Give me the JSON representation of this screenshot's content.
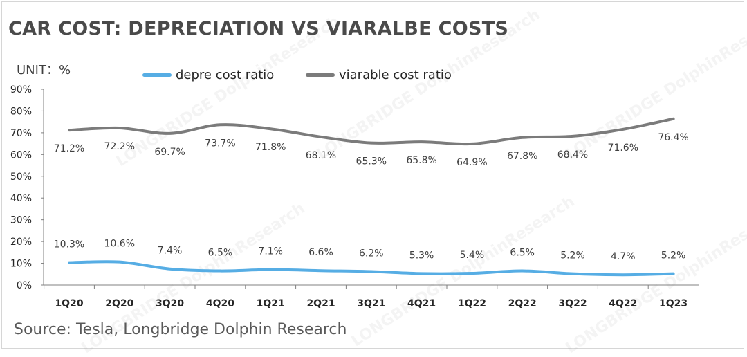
{
  "title": "CAR COST: DEPRECIATION VS VIARALBE COSTS",
  "unit_label": "UNIT：%",
  "source": "Source: Tesla, Longbridge Dolphin Research",
  "watermark_text": "LONGBRIDGE DolphinResearch",
  "colors": {
    "depre": "#56ade4",
    "viarable": "#7b7b7b",
    "axis": "#808080",
    "text": "#404040"
  },
  "chart_data": {
    "type": "line",
    "categories": [
      "1Q20",
      "2Q20",
      "3Q20",
      "4Q20",
      "1Q21",
      "2Q21",
      "3Q21",
      "4Q21",
      "1Q22",
      "2Q22",
      "3Q22",
      "4Q22",
      "1Q23"
    ],
    "series": [
      {
        "name": "depre cost ratio",
        "values": [
          10.3,
          10.6,
          7.4,
          6.5,
          7.1,
          6.6,
          6.2,
          5.3,
          5.4,
          6.5,
          5.2,
          4.7,
          5.2
        ]
      },
      {
        "name": "viarable cost ratio",
        "values": [
          71.2,
          72.2,
          69.7,
          73.7,
          71.8,
          68.1,
          65.3,
          65.8,
          64.9,
          67.8,
          68.4,
          71.6,
          76.4
        ]
      }
    ],
    "value_labels": {
      "depre cost ratio": [
        "10.3%",
        "10.6%",
        "7.4%",
        "6.5%",
        "7.1%",
        "6.6%",
        "6.2%",
        "5.3%",
        "5.4%",
        "6.5%",
        "5.2%",
        "4.7%",
        "5.2%"
      ],
      "viarable cost ratio": [
        "71.2%",
        "72.2%",
        "69.7%",
        "73.7%",
        "71.8%",
        "68.1%",
        "65.3%",
        "65.8%",
        "64.9%",
        "67.8%",
        "68.4%",
        "71.6%",
        "76.4%"
      ]
    },
    "yticks": [
      "0%",
      "10%",
      "20%",
      "30%",
      "40%",
      "50%",
      "60%",
      "70%",
      "80%",
      "90%"
    ],
    "ylim": [
      0,
      90
    ],
    "grid": false,
    "legend_position": "top",
    "smooth": true
  }
}
